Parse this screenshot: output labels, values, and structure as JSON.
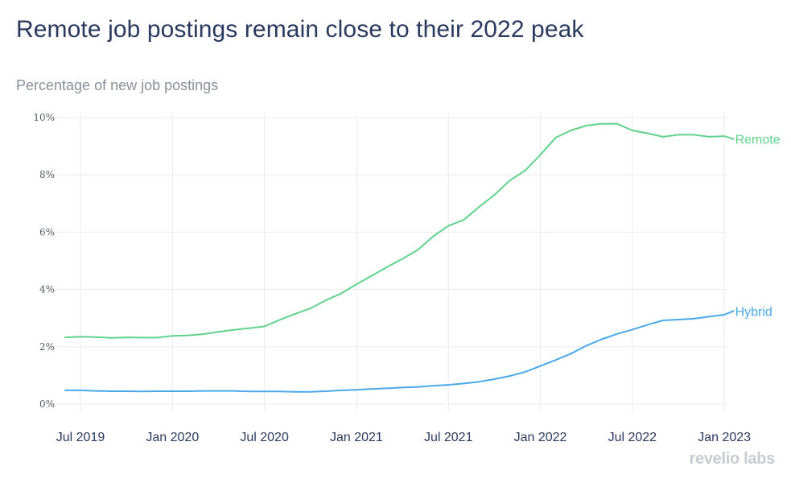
{
  "title": "Remote job postings remain close to their 2022 peak",
  "subtitle": "Percentage of new job postings",
  "logo": "revelio labs",
  "colors": {
    "remote": "#5fd38d",
    "hybrid": "#4aa9e9",
    "title": "#2a3a5e"
  },
  "chart_data": {
    "type": "line",
    "title": "Remote job postings remain close to their 2022 peak",
    "ylabel": "Percentage of new job postings",
    "xlabel": "",
    "ylim": [
      0,
      10
    ],
    "yticks": [
      0,
      2,
      4,
      6,
      8,
      10
    ],
    "ytick_labels": [
      "0%",
      "2%",
      "4%",
      "6%",
      "8%",
      "10%"
    ],
    "xlim": [
      -0.05,
      43.15
    ],
    "xtick_positions": [
      1,
      7,
      13,
      19,
      25,
      31,
      37,
      43
    ],
    "xtick_labels": [
      "Jul 2019",
      "Jan 2020",
      "Jul 2020",
      "Jan 2021",
      "Jul 2021",
      "Jan 2022",
      "Jul 2022",
      "Jan 2023"
    ],
    "x_unit": "months since Jun 2019",
    "grid": true,
    "legend": "labels at line ends (right)",
    "series": [
      {
        "name": "Remote",
        "x": [
          0,
          1,
          2,
          3,
          4,
          5,
          6,
          7,
          8,
          9,
          10,
          11,
          12,
          13,
          14,
          15,
          16,
          17,
          18,
          19,
          20,
          21,
          22,
          23,
          24,
          25,
          26,
          27,
          28,
          29,
          30,
          31,
          32,
          33,
          34,
          35,
          36,
          37,
          38,
          39,
          40,
          41,
          42,
          43,
          43.6
        ],
        "values": [
          2.33,
          2.35,
          2.34,
          2.31,
          2.33,
          2.32,
          2.32,
          2.38,
          2.4,
          2.44,
          2.52,
          2.59,
          2.65,
          2.71,
          2.94,
          3.15,
          3.34,
          3.62,
          3.86,
          4.18,
          4.48,
          4.78,
          5.07,
          5.38,
          5.85,
          6.22,
          6.43,
          6.88,
          7.3,
          7.8,
          8.15,
          8.7,
          9.3,
          9.55,
          9.72,
          9.78,
          9.78,
          9.55,
          9.45,
          9.33,
          9.4,
          9.4,
          9.33,
          9.35,
          9.25
        ]
      },
      {
        "name": "Hybrid",
        "x": [
          0,
          1,
          2,
          3,
          4,
          5,
          6,
          7,
          8,
          9,
          10,
          11,
          12,
          13,
          14,
          15,
          16,
          17,
          18,
          19,
          20,
          21,
          22,
          23,
          24,
          25,
          26,
          27,
          28,
          29,
          30,
          31,
          32,
          33,
          34,
          35,
          36,
          37,
          38,
          39,
          40,
          41,
          42,
          43,
          43.6
        ],
        "values": [
          0.48,
          0.48,
          0.46,
          0.45,
          0.45,
          0.44,
          0.45,
          0.45,
          0.45,
          0.46,
          0.46,
          0.46,
          0.44,
          0.44,
          0.44,
          0.43,
          0.43,
          0.45,
          0.48,
          0.5,
          0.53,
          0.55,
          0.58,
          0.6,
          0.64,
          0.67,
          0.72,
          0.78,
          0.87,
          0.98,
          1.12,
          1.33,
          1.54,
          1.76,
          2.04,
          2.26,
          2.45,
          2.6,
          2.77,
          2.92,
          2.95,
          2.98,
          3.05,
          3.12,
          3.25
        ]
      }
    ]
  }
}
